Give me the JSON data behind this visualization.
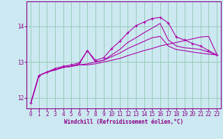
{
  "bg_color": "#cce8f0",
  "grid_color": "#99ccbb",
  "line_color": "#aa00aa",
  "marker": "+",
  "xlabel": "Windchill (Refroidissement éolien,°C)",
  "xlabel_color": "#880088",
  "tick_color": "#880088",
  "xlim": [
    -0.5,
    23.5
  ],
  "ylim": [
    11.7,
    14.7
  ],
  "yticks": [
    12,
    13,
    14
  ],
  "xticks": [
    0,
    1,
    2,
    3,
    4,
    5,
    6,
    7,
    8,
    9,
    10,
    11,
    12,
    13,
    14,
    15,
    16,
    17,
    18,
    19,
    20,
    21,
    22,
    23
  ],
  "lines": [
    {
      "x": [
        0,
        1,
        2,
        3,
        4,
        5,
        6,
        7,
        8,
        9,
        10,
        11,
        12,
        13,
        14,
        15,
        16,
        17,
        18,
        19,
        20,
        21,
        22,
        23
      ],
      "y": [
        11.85,
        12.62,
        12.72,
        12.78,
        12.85,
        12.88,
        12.92,
        12.92,
        12.95,
        13.0,
        13.05,
        13.1,
        13.18,
        13.25,
        13.32,
        13.38,
        13.45,
        13.5,
        13.55,
        13.6,
        13.65,
        13.7,
        13.72,
        13.22
      ],
      "has_marker": false
    },
    {
      "x": [
        0,
        1,
        2,
        3,
        4,
        5,
        6,
        7,
        8,
        9,
        10,
        11,
        12,
        13,
        14,
        15,
        16,
        17,
        18,
        19,
        20,
        21,
        22,
        23
      ],
      "y": [
        11.85,
        12.62,
        12.72,
        12.78,
        12.85,
        12.88,
        12.92,
        12.95,
        13.0,
        13.05,
        13.15,
        13.25,
        13.38,
        13.48,
        13.58,
        13.68,
        13.72,
        13.45,
        13.35,
        13.32,
        13.28,
        13.25,
        13.22,
        13.2
      ],
      "has_marker": false
    },
    {
      "x": [
        0,
        1,
        2,
        3,
        4,
        5,
        6,
        7,
        8,
        9,
        10,
        11,
        12,
        13,
        14,
        15,
        16,
        17,
        18,
        19,
        20,
        21,
        22,
        23
      ],
      "y": [
        11.85,
        12.62,
        12.72,
        12.78,
        12.85,
        12.88,
        12.95,
        13.32,
        13.0,
        13.05,
        13.2,
        13.35,
        13.55,
        13.68,
        13.82,
        13.95,
        14.08,
        13.62,
        13.45,
        13.4,
        13.38,
        13.35,
        13.28,
        13.2
      ],
      "has_marker": false
    },
    {
      "x": [
        0,
        1,
        2,
        3,
        4,
        5,
        6,
        7,
        8,
        9,
        10,
        11,
        12,
        13,
        14,
        15,
        16,
        17,
        18,
        19,
        20,
        21,
        22,
        23
      ],
      "y": [
        11.85,
        12.62,
        12.72,
        12.82,
        12.88,
        12.92,
        12.98,
        13.32,
        13.05,
        13.12,
        13.38,
        13.58,
        13.82,
        14.02,
        14.12,
        14.22,
        14.25,
        14.1,
        13.7,
        13.62,
        13.52,
        13.45,
        13.32,
        13.2
      ],
      "has_marker": true
    }
  ]
}
